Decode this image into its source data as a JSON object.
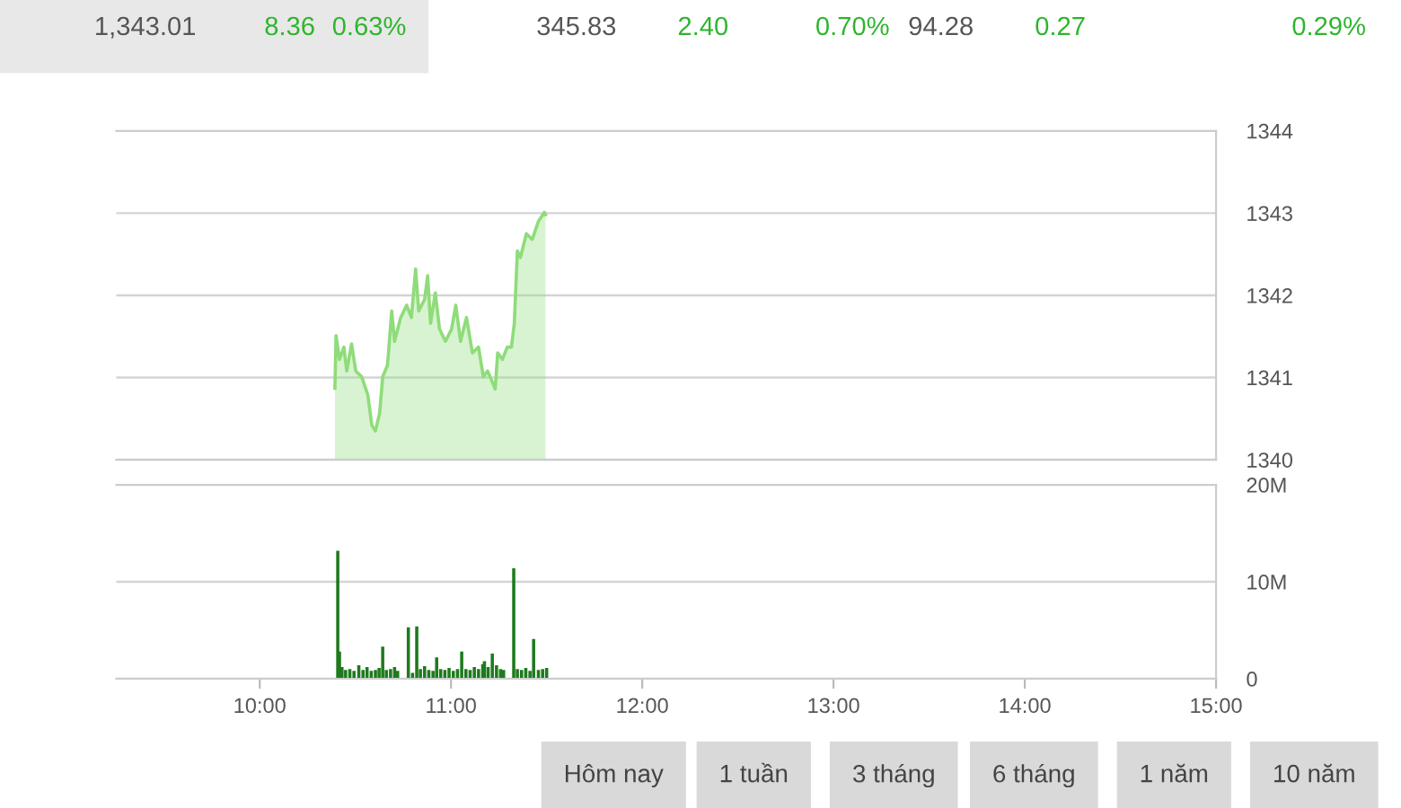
{
  "chart_data": [
    {
      "type": "other",
      "annotations": [
        "1,343.01",
        "8.36",
        "0.63%",
        "345.83",
        "2.40",
        "0.70%",
        "94.28",
        "0.27",
        "0.29%"
      ]
    },
    {
      "type": "area",
      "x": [
        10.393,
        10.399,
        10.417,
        10.44,
        10.455,
        10.48,
        10.502,
        10.533,
        10.565,
        10.586,
        10.605,
        10.627,
        10.643,
        10.668,
        10.69,
        10.705,
        10.737,
        10.768,
        10.793,
        10.815,
        10.831,
        10.862,
        10.878,
        10.893,
        10.918,
        10.94,
        10.971,
        11.003,
        11.025,
        11.05,
        11.081,
        11.112,
        11.144,
        11.169,
        11.191,
        11.212,
        11.231,
        11.244,
        11.269,
        11.294,
        11.316,
        11.331,
        11.347,
        11.363,
        11.394,
        11.425,
        11.457,
        11.488,
        11.494
      ],
      "series": [
        {
          "color": "#8fdc7a",
          "values": [
            1340.87,
            1341.51,
            1341.22,
            1341.37,
            1341.08,
            1341.41,
            1341.08,
            1341.01,
            1340.79,
            1340.42,
            1340.35,
            1340.57,
            1341.01,
            1341.15,
            1341.81,
            1341.44,
            1341.73,
            1341.88,
            1341.73,
            1342.32,
            1341.81,
            1341.95,
            1342.24,
            1341.66,
            1342.03,
            1341.59,
            1341.44,
            1341.59,
            1341.88,
            1341.44,
            1341.73,
            1341.3,
            1341.37,
            1341.01,
            1341.08,
            1340.97,
            1340.86,
            1341.3,
            1341.22,
            1341.37,
            1341.37,
            1341.66,
            1342.54,
            1342.46,
            1342.75,
            1342.68,
            1342.9,
            1343.01,
            1342.98
          ]
        }
      ],
      "xlim": [
        9.25,
        15
      ],
      "ylim": [
        1340,
        1344
      ],
      "yticks": [
        1340,
        1341,
        1342,
        1343,
        1344
      ],
      "grid": "y",
      "tick_labels": "y"
    },
    {
      "type": "bar",
      "x": [
        10.408,
        10.417,
        10.43,
        10.449,
        10.471,
        10.493,
        10.518,
        10.54,
        10.561,
        10.583,
        10.605,
        10.624,
        10.643,
        10.662,
        10.684,
        10.705,
        10.721,
        10.777,
        10.799,
        10.821,
        10.84,
        10.862,
        10.884,
        10.906,
        10.925,
        10.946,
        10.968,
        10.99,
        11.012,
        11.034,
        11.056,
        11.078,
        11.1,
        11.122,
        11.144,
        11.166,
        11.175,
        11.194,
        11.216,
        11.238,
        11.259,
        11.275,
        11.328,
        11.347,
        11.369,
        11.391,
        11.413,
        11.432,
        11.457,
        11.479,
        11.5
      ],
      "series": [
        {
          "color": "#1e7a1e",
          "values": [
            13200000,
            2800000,
            1200000,
            900000,
            1000000,
            800000,
            1400000,
            900000,
            1200000,
            800000,
            900000,
            1100000,
            3300000,
            900000,
            1000000,
            1200000,
            800000,
            5300000,
            600000,
            5400000,
            1000000,
            1300000,
            900000,
            800000,
            2200000,
            1000000,
            900000,
            1100000,
            800000,
            1000000,
            2800000,
            1000000,
            900000,
            1200000,
            1000000,
            1500000,
            1800000,
            1200000,
            2600000,
            1400000,
            1000000,
            900000,
            11400000,
            1000000,
            900000,
            1100000,
            800000,
            4100000,
            900000,
            1000000,
            1100000
          ]
        }
      ],
      "xlim": [
        9.25,
        15
      ],
      "xticks": [
        {
          "value": 10,
          "label": "10:00"
        },
        {
          "value": 11,
          "label": "11:00"
        },
        {
          "value": 12,
          "label": "12:00"
        },
        {
          "value": 13,
          "label": "13:00"
        },
        {
          "value": 14,
          "label": "14:00"
        },
        {
          "value": 15,
          "label": "15:00"
        }
      ],
      "ylim": [
        0,
        20000000
      ],
      "yticks": [
        {
          "value": 0,
          "label": "0"
        },
        {
          "value": 10000000,
          "label": "10M"
        },
        {
          "value": 20000000,
          "label": "20M"
        }
      ],
      "grid": "y"
    },
    {
      "type": "other",
      "annotations": [
        "Hôm nay",
        "1 tuần",
        "3 tháng",
        "6 tháng",
        "1 năm",
        "10 năm"
      ]
    }
  ]
}
